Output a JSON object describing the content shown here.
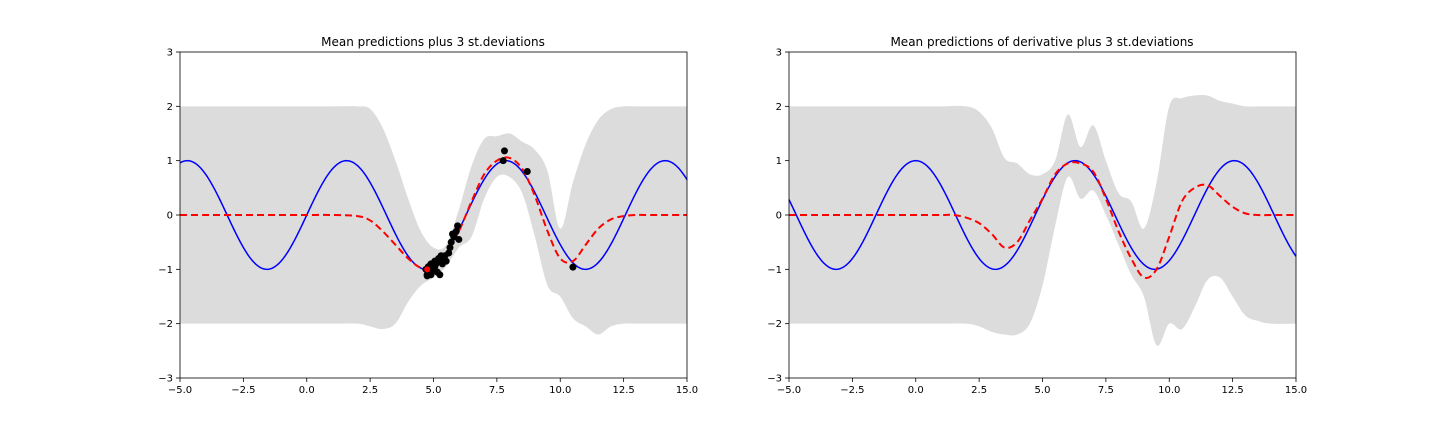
{
  "chart_data": [
    {
      "type": "line",
      "title": "Mean predictions plus 3 st.deviations",
      "xlabel": "",
      "ylabel": "",
      "xlim": [
        -5.0,
        15.0
      ],
      "ylim": [
        -3,
        3
      ],
      "xticks": [
        "−5.0",
        "−2.5",
        "0.0",
        "2.5",
        "5.0",
        "7.5",
        "10.0",
        "12.5",
        "15.0"
      ],
      "yticks": [
        "−3",
        "−2",
        "−1",
        "0",
        "1",
        "2",
        "3"
      ],
      "grid": false,
      "series": [
        {
          "kind": "band",
          "color": "#dcdcdc",
          "x": [
            -5,
            -4,
            -3,
            -2,
            -1,
            0,
            1,
            2,
            2.5,
            3,
            3.5,
            4,
            4.5,
            5,
            5.5,
            6,
            6.5,
            7,
            7.5,
            8,
            8.5,
            9,
            9.5,
            10,
            10.5,
            11,
            11.5,
            12,
            12.5,
            13,
            13.5,
            14,
            15
          ],
          "upper": [
            2,
            2,
            2,
            2,
            2,
            2,
            2,
            2,
            1.95,
            1.6,
            1.0,
            0.3,
            -0.3,
            -0.6,
            -0.55,
            0.1,
            0.9,
            1.4,
            1.45,
            1.5,
            1.35,
            1.2,
            0.8,
            -0.25,
            0.6,
            1.3,
            1.75,
            1.95,
            2.0,
            2,
            2,
            2,
            2
          ],
          "lower": [
            -2,
            -2,
            -2,
            -2,
            -2,
            -2,
            -2,
            -2,
            -2.05,
            -2.1,
            -2.0,
            -1.6,
            -1.3,
            -1.15,
            -0.95,
            -0.6,
            -0.4,
            0.3,
            0.7,
            0.7,
            0.4,
            -0.4,
            -1.3,
            -1.5,
            -1.9,
            -2.05,
            -2.2,
            -2.05,
            -2.0,
            -2,
            -2,
            -2,
            -2
          ]
        },
        {
          "kind": "function",
          "fn": "sin",
          "color": "#0000ff",
          "style": "solid"
        },
        {
          "kind": "line",
          "color": "#ff0000",
          "style": "dashed",
          "x": [
            -5,
            -4,
            -3,
            -2,
            -1,
            0,
            1,
            2,
            2.5,
            3,
            3.5,
            4,
            4.5,
            5,
            5.5,
            6,
            6.5,
            7,
            7.5,
            8,
            8.5,
            9,
            9.5,
            10,
            10.5,
            11,
            11.5,
            12,
            12.5,
            13,
            13.5,
            14,
            15
          ],
          "y": [
            0,
            0,
            0,
            0,
            0,
            0,
            0,
            -0.02,
            -0.1,
            -0.3,
            -0.55,
            -0.8,
            -0.97,
            -0.95,
            -0.7,
            -0.3,
            0.25,
            0.75,
            1.0,
            1.05,
            0.85,
            0.35,
            -0.3,
            -0.8,
            -0.85,
            -0.55,
            -0.25,
            -0.08,
            -0.02,
            0,
            0,
            0,
            0
          ]
        },
        {
          "kind": "scatter",
          "color": "#000000",
          "x": [
            4.7,
            4.75,
            4.8,
            4.85,
            4.9,
            4.95,
            5.0,
            5.05,
            5.1,
            5.15,
            5.2,
            5.25,
            5.3,
            5.4,
            5.5,
            5.6,
            5.65,
            5.7,
            5.75,
            5.8,
            5.9,
            5.95,
            6.0,
            4.9,
            5.05,
            5.2,
            4.75,
            5.35,
            5.45,
            7.75,
            7.8,
            8.7,
            10.5
          ],
          "y": [
            -1.0,
            -1.12,
            -0.95,
            -1.05,
            -1.1,
            -0.92,
            -1.0,
            -0.85,
            -0.9,
            -1.05,
            -0.8,
            -1.1,
            -0.75,
            -0.8,
            -0.85,
            -0.7,
            -0.6,
            -0.5,
            -0.35,
            -0.4,
            -0.3,
            -0.2,
            -0.45,
            -0.9,
            -0.95,
            -0.85,
            -1.1,
            -0.9,
            -0.75,
            1.0,
            1.18,
            0.8,
            -0.96
          ]
        },
        {
          "kind": "point",
          "color": "#ff0000",
          "x": [
            4.75
          ],
          "y": [
            -1.0
          ]
        }
      ]
    },
    {
      "type": "line",
      "title": "Mean predictions of derivative plus 3 st.deviations",
      "xlabel": "",
      "ylabel": "",
      "xlim": [
        -5.0,
        15.0
      ],
      "ylim": [
        -3,
        3
      ],
      "xticks": [
        "−5.0",
        "−2.5",
        "0.0",
        "2.5",
        "5.0",
        "7.5",
        "10.0",
        "12.5",
        "15.0"
      ],
      "yticks": [
        "−3",
        "−2",
        "−1",
        "0",
        "1",
        "2",
        "3"
      ],
      "grid": false,
      "series": [
        {
          "kind": "band",
          "color": "#dcdcdc",
          "x": [
            -5,
            -4,
            -3,
            -2,
            -1,
            0,
            1,
            2,
            2.5,
            3,
            3.5,
            4,
            4.5,
            5,
            5.5,
            6,
            6.5,
            7,
            7.5,
            8,
            8.5,
            9,
            9.5,
            10,
            10.5,
            11,
            11.5,
            12,
            12.5,
            13,
            13.5,
            14,
            15
          ],
          "upper": [
            2,
            2,
            2,
            2,
            2,
            2,
            2,
            2,
            1.9,
            1.6,
            1.05,
            0.95,
            0.75,
            0.75,
            1.0,
            1.85,
            1.25,
            1.65,
            1.0,
            0.4,
            0.25,
            -0.25,
            0.6,
            2.0,
            2.15,
            2.2,
            2.2,
            2.1,
            2.05,
            2.0,
            2,
            2,
            2
          ],
          "lower": [
            -2,
            -2,
            -2,
            -2,
            -2,
            -2,
            -2,
            -2,
            -2.05,
            -2.15,
            -2.2,
            -2.2,
            -2.0,
            -1.3,
            -0.2,
            0.7,
            0.3,
            0.45,
            0.0,
            -0.55,
            -1.1,
            -1.5,
            -2.4,
            -2.0,
            -2.1,
            -1.7,
            -1.2,
            -1.15,
            -1.5,
            -1.85,
            -1.95,
            -2,
            -2
          ]
        },
        {
          "kind": "function",
          "fn": "cos",
          "color": "#0000ff",
          "style": "solid"
        },
        {
          "kind": "line",
          "color": "#ff0000",
          "style": "dashed",
          "x": [
            -5,
            -4,
            -3,
            -2,
            -1,
            0,
            1,
            1.5,
            2,
            2.5,
            3,
            3.5,
            4,
            4.5,
            5,
            5.5,
            6,
            6.5,
            7,
            7.5,
            8,
            8.5,
            9,
            9.5,
            10,
            10.5,
            11,
            11.5,
            12,
            12.5,
            13,
            13.5,
            14,
            15
          ],
          "y": [
            0,
            0,
            0,
            0,
            0,
            0,
            0,
            0,
            -0.05,
            -0.15,
            -0.35,
            -0.6,
            -0.5,
            -0.1,
            0.3,
            0.75,
            0.95,
            0.95,
            0.8,
            0.3,
            -0.3,
            -0.8,
            -1.15,
            -1.0,
            -0.4,
            0.25,
            0.5,
            0.55,
            0.35,
            0.15,
            0.03,
            0,
            0,
            0
          ]
        }
      ]
    }
  ]
}
